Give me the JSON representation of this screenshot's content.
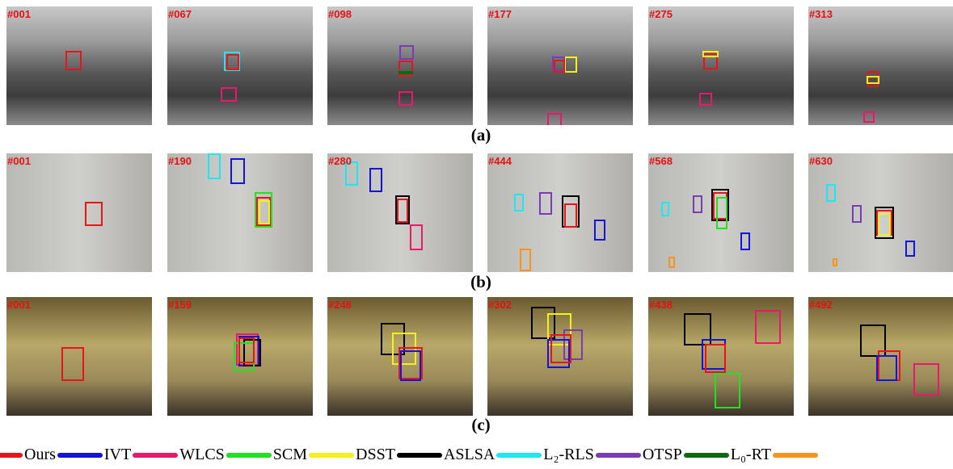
{
  "rows": [
    {
      "label": "(a)",
      "frames": [
        "#001",
        "#067",
        "#098",
        "#177",
        "#275",
        "#313"
      ]
    },
    {
      "label": "(b)",
      "frames": [
        "#001",
        "#190",
        "#280",
        "#444",
        "#568",
        "#630"
      ]
    },
    {
      "label": "(c)",
      "frames": [
        "#001",
        "#159",
        "#248",
        "#302",
        "#438",
        "#492"
      ]
    }
  ],
  "legend": [
    {
      "name": "Ours",
      "color": "#e8141c"
    },
    {
      "name": "IVT",
      "color": "#1414d8"
    },
    {
      "name": "WLCS",
      "color": "#e8186c"
    },
    {
      "name": "SCM",
      "color": "#22e022"
    },
    {
      "name": "DSST",
      "color": "#f4f01c"
    },
    {
      "name": "ASLSA",
      "color": "#000000"
    },
    {
      "name": "L₂-RLS",
      "color": "#1ce8f4"
    },
    {
      "name": "OTSP",
      "color": "#7a3cb4"
    },
    {
      "name": "L₀-RT",
      "color": "#0e6a12"
    },
    {
      "color": "#f7941d"
    }
  ]
}
